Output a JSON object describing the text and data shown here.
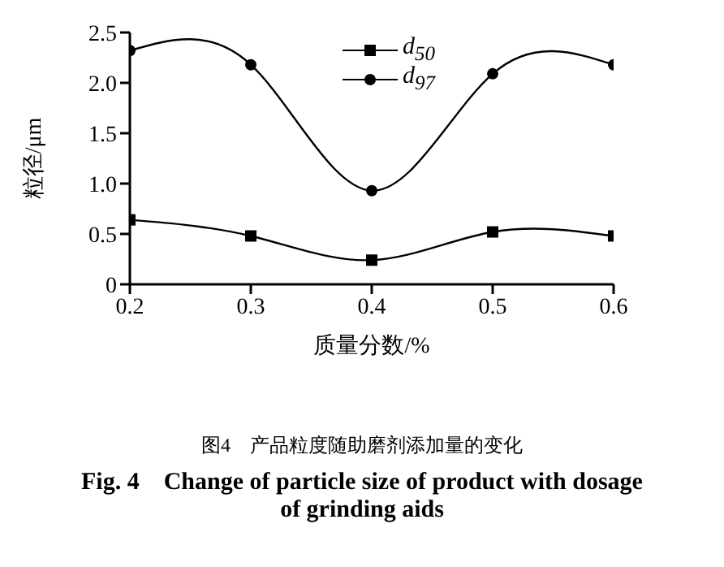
{
  "chart_data": {
    "type": "line",
    "xlabel": "质量分数/%",
    "ylabel": "粒径/μm",
    "annotations": [
      "图4　产品粒度随助磨剂添加量的变化",
      "Fig. 4　Change of particle size of product with dosage of grinding aids"
    ],
    "x": [
      0.2,
      0.3,
      0.4,
      0.5,
      0.6
    ],
    "series": [
      {
        "name": "d$_{50}$",
        "color": "#000000",
        "marker": "square",
        "values": [
          0.64,
          0.48,
          0.24,
          0.52,
          0.48
        ]
      },
      {
        "name": "d$_{97}$",
        "color": "#000000",
        "marker": "circle",
        "values": [
          2.32,
          2.18,
          0.93,
          2.09,
          2.18
        ]
      }
    ],
    "xlim": [
      0.2,
      0.6
    ],
    "xticks": [
      0.2,
      0.3,
      0.4,
      0.5,
      0.6
    ],
    "ylim": [
      0,
      2.5
    ],
    "yticks": [
      0,
      {
        "value": 0.5,
        "label": "0.5"
      },
      {
        "value": 1,
        "label": "1.0"
      },
      {
        "value": 1.5,
        "label": "1.5"
      },
      {
        "value": 2,
        "label": "2.0"
      },
      {
        "value": 2.5,
        "label": "2.5"
      }
    ],
    "grid": false,
    "legend": "top right",
    "line_style": "solid"
  }
}
